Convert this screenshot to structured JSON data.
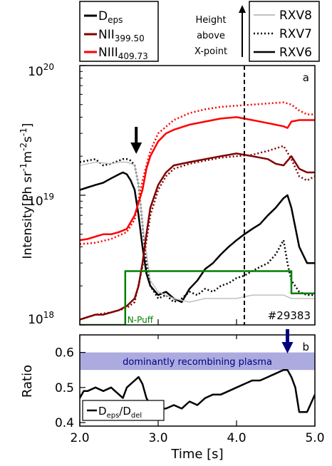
{
  "chart_data": [
    {
      "type": "line",
      "panel": "a",
      "xlim": [
        2.0,
        5.0
      ],
      "ylim": [
        1e+18,
        1e+20
      ],
      "yscale": "log",
      "ylabel": "Intensity[Ph sr-1m-2s-1]",
      "ylabel_parts": [
        "Intensity[Ph sr",
        "-1",
        "m",
        "-2",
        "s",
        "-1",
        "]"
      ],
      "ytick_labels": [
        {
          "value": 1e+20,
          "base": "10",
          "exp": "20"
        },
        {
          "value": 1e+19,
          "base": "10",
          "exp": "19"
        },
        {
          "value": 1e+18,
          "base": "10",
          "exp": "18"
        }
      ],
      "shot_label": "#29383",
      "vline_x": 4.1,
      "annotations": {
        "arrow_x": 2.72,
        "npuff_label": "N-Puff"
      },
      "legend_species": [
        {
          "name": "Deps",
          "base": "D",
          "sub": "eps",
          "color": "#000000"
        },
        {
          "name": "NII399.50",
          "base": "NII",
          "sub": "399.50",
          "color": "#800000"
        },
        {
          "name": "NIII409.73",
          "base": "NIII",
          "sub": "409.73",
          "color": "#ff0000"
        }
      ],
      "height_label": [
        "Height",
        "above",
        "X-point"
      ],
      "legend_views": [
        {
          "name": "RXV8",
          "color": "#c0c0c0",
          "dash": "solid"
        },
        {
          "name": "RXV7",
          "color": "#000000",
          "dash": "dotted"
        },
        {
          "name": "RXV6",
          "color": "#000000",
          "dash": "solid"
        }
      ],
      "series": [
        {
          "name": "Deps RXV6",
          "color": "#000000",
          "dash": "solid",
          "x": [
            2.0,
            2.1,
            2.2,
            2.3,
            2.4,
            2.5,
            2.55,
            2.6,
            2.65,
            2.7,
            2.75,
            2.8,
            2.85,
            2.9,
            3.0,
            3.1,
            3.2,
            3.3,
            3.4,
            3.5,
            3.6,
            3.7,
            3.8,
            3.9,
            4.0,
            4.1,
            4.2,
            4.3,
            4.4,
            4.5,
            4.6,
            4.65,
            4.7,
            4.8,
            4.9,
            5.0
          ],
          "y": [
            1.1e+19,
            1.15e+19,
            1.2e+19,
            1.25e+19,
            1.35e+19,
            1.45e+19,
            1.5e+19,
            1.45e+19,
            1.3e+19,
            1.1e+19,
            7e+18,
            4e+18,
            2.5e+18,
            2e+18,
            1.7e+18,
            1.8e+18,
            1.6e+18,
            1.5e+18,
            1.9e+18,
            2.2e+18,
            2.7e+18,
            3e+18,
            3.5e+18,
            4e+18,
            4.5e+18,
            5e+18,
            5.5e+18,
            6e+18,
            7e+18,
            8e+18,
            9.5e+18,
            1e+19,
            8e+18,
            4e+18,
            3e+18,
            3e+18
          ]
        },
        {
          "name": "Deps RXV7",
          "color": "#000000",
          "dash": "dotted",
          "x": [
            2.0,
            2.1,
            2.2,
            2.3,
            2.4,
            2.5,
            2.55,
            2.6,
            2.65,
            2.7,
            2.75,
            2.8,
            2.85,
            2.9,
            3.0,
            3.1,
            3.2,
            3.3,
            3.4,
            3.5,
            3.6,
            3.7,
            3.8,
            3.9,
            4.0,
            4.1,
            4.2,
            4.3,
            4.4,
            4.5,
            4.6,
            4.65,
            4.7,
            4.8,
            4.9,
            5.0
          ],
          "y": [
            1.8e+19,
            1.85e+19,
            1.9e+19,
            1.7e+19,
            1.75e+19,
            1.85e+19,
            1.9e+19,
            1.9e+19,
            1.85e+19,
            1.7e+19,
            1.2e+19,
            6e+18,
            3e+18,
            2e+18,
            1.6e+18,
            1.7e+18,
            1.5e+18,
            1.6e+18,
            1.8e+18,
            1.7e+18,
            1.9e+18,
            1.8e+18,
            2e+18,
            2.1e+18,
            2.3e+18,
            2.4e+18,
            2.6e+18,
            2.8e+18,
            3e+18,
            3.5e+18,
            4.5e+18,
            3e+18,
            2.2e+18,
            1.8e+18,
            1.7e+18,
            1.7e+18
          ]
        },
        {
          "name": "Deps RXV8",
          "color": "#c0c0c0",
          "dash": "solid",
          "x": [
            2.0,
            2.2,
            2.4,
            2.5,
            2.6,
            2.7,
            2.75,
            2.8,
            2.9,
            3.0,
            3.2,
            3.4,
            3.6,
            3.8,
            4.0,
            4.2,
            4.4,
            4.6,
            4.7,
            4.8,
            5.0
          ],
          "y": [
            1.7e+19,
            1.8e+19,
            1.75e+19,
            1.8e+19,
            1.8e+19,
            1.7e+19,
            1.2e+19,
            6e+18,
            2.2e+18,
            1.8e+18,
            1.6e+18,
            1.5e+18,
            1.6e+18,
            1.6e+18,
            1.6e+18,
            1.7e+18,
            1.7e+18,
            1.7e+18,
            1.6e+18,
            1.6e+18,
            1.6e+18
          ]
        },
        {
          "name": "NII399.50 RXV6",
          "color": "#800000",
          "dash": "solid",
          "x": [
            2.0,
            2.1,
            2.2,
            2.3,
            2.4,
            2.5,
            2.6,
            2.7,
            2.75,
            2.8,
            2.85,
            2.9,
            3.0,
            3.1,
            3.2,
            3.4,
            3.6,
            3.8,
            4.0,
            4.1,
            4.2,
            4.4,
            4.5,
            4.6,
            4.7,
            4.8,
            4.9,
            5.0
          ],
          "y": [
            1.1e+18,
            1.15e+18,
            1.2e+18,
            1.2e+18,
            1.25e+18,
            1.3e+18,
            1.4e+18,
            1.6e+18,
            2e+18,
            3e+18,
            5e+18,
            8e+18,
            1.2e+19,
            1.5e+19,
            1.7e+19,
            1.8e+19,
            1.9e+19,
            2e+19,
            2.1e+19,
            2.05e+19,
            2e+19,
            1.9e+19,
            1.75e+19,
            1.7e+19,
            2e+19,
            1.6e+19,
            1.5e+19,
            1.5e+19
          ]
        },
        {
          "name": "NII399.50 RXV7",
          "color": "#800000",
          "dash": "dotted",
          "x": [
            2.0,
            2.2,
            2.4,
            2.6,
            2.7,
            2.8,
            2.9,
            3.0,
            3.1,
            3.2,
            3.4,
            3.6,
            3.8,
            4.0,
            4.2,
            4.4,
            4.6,
            4.7,
            4.8,
            4.9,
            5.0
          ],
          "y": [
            1.1e+18,
            1.2e+18,
            1.25e+18,
            1.35e+18,
            1.5e+18,
            2.8e+18,
            7e+18,
            1.1e+19,
            1.4e+19,
            1.6e+19,
            1.75e+19,
            1.85e+19,
            1.95e+19,
            2e+19,
            2.05e+19,
            2.2e+19,
            2.4e+19,
            1.9e+19,
            1.4e+19,
            1.3e+19,
            1.4e+19
          ]
        },
        {
          "name": "NIII409.73 RXV6",
          "color": "#ff0000",
          "dash": "solid",
          "x": [
            2.0,
            2.1,
            2.2,
            2.3,
            2.4,
            2.5,
            2.6,
            2.7,
            2.8,
            2.85,
            2.9,
            3.0,
            3.1,
            3.2,
            3.4,
            3.6,
            3.8,
            4.0,
            4.2,
            4.4,
            4.6,
            4.65,
            4.7,
            4.8,
            5.0
          ],
          "y": [
            4.5e+18,
            4.6e+18,
            4.8e+18,
            5e+18,
            5e+18,
            5.2e+18,
            5.5e+18,
            7e+18,
            1.1e+19,
            1.6e+19,
            2e+19,
            2.6e+19,
            3e+19,
            3.2e+19,
            3.5e+19,
            3.7e+19,
            3.9e+19,
            4e+19,
            3.8e+19,
            3.6e+19,
            3.4e+19,
            3.3e+19,
            3.7e+19,
            3.8e+19,
            3.8e+19
          ]
        },
        {
          "name": "NIII409.73 RXV7",
          "color": "#ff0000",
          "dash": "dotted",
          "x": [
            2.0,
            2.2,
            2.4,
            2.6,
            2.7,
            2.8,
            2.9,
            3.0,
            3.2,
            3.4,
            3.6,
            3.8,
            4.0,
            4.2,
            4.4,
            4.6,
            4.7,
            4.8,
            4.9,
            5.0
          ],
          "y": [
            4.2e+18,
            4.3e+18,
            4.6e+18,
            5.2e+18,
            6.5e+18,
            1.3e+19,
            2.2e+19,
            3e+19,
            3.8e+19,
            4.3e+19,
            4.6e+19,
            4.8e+19,
            4.9e+19,
            5e+19,
            5.1e+19,
            5.2e+19,
            5e+19,
            4.5e+19,
            4.2e+19,
            4.2e+19
          ]
        },
        {
          "name": "N-Puff",
          "color": "#008000",
          "dash": "solid",
          "x": [
            2.0,
            2.55,
            2.55,
            2.58,
            2.58,
            4.7,
            4.7,
            5.0
          ],
          "y": [
            1e+18,
            1e+18,
            1e+18,
            1e+18,
            2.6e+18,
            2.6e+18,
            1.75e+18,
            1.75e+18
          ]
        }
      ]
    },
    {
      "type": "line",
      "panel": "b",
      "xlim": [
        2.0,
        5.0
      ],
      "ylim": [
        0.39,
        0.65
      ],
      "ylabel": "Ratio",
      "xlabel": "Time [s]",
      "yticks": [
        0.4,
        0.5,
        0.6
      ],
      "ytick_labels": [
        "0.4",
        "0.5",
        "0.6"
      ],
      "xticks": [
        2.0,
        3.0,
        4.0,
        5.0
      ],
      "xtick_labels": [
        "2.0",
        "3.0",
        "4.0",
        "5.0"
      ],
      "band": {
        "y0": 0.55,
        "y1": 0.6,
        "color": "#8f8fd6",
        "label": "dominantly recombining plasma",
        "label_color": "#000080"
      },
      "arrow": {
        "x": 4.65,
        "color": "#000080"
      },
      "legend": {
        "name": "Deps/Ddel",
        "base1": "D",
        "sub1": "eps",
        "mid": "/D",
        "sub2": "del"
      },
      "series": [
        {
          "name": "Deps/Ddel",
          "color": "#000000",
          "dash": "solid",
          "x": [
            2.0,
            2.05,
            2.1,
            2.2,
            2.3,
            2.4,
            2.45,
            2.5,
            2.55,
            2.6,
            2.7,
            2.75,
            2.8,
            2.85,
            2.9,
            3.0,
            3.1,
            3.2,
            3.3,
            3.4,
            3.5,
            3.6,
            3.7,
            3.8,
            3.9,
            4.0,
            4.1,
            4.2,
            4.3,
            4.4,
            4.5,
            4.6,
            4.65,
            4.7,
            4.75,
            4.8,
            4.9,
            5.0
          ],
          "y": [
            0.47,
            0.49,
            0.49,
            0.5,
            0.49,
            0.5,
            0.49,
            0.48,
            0.47,
            0.5,
            0.52,
            0.53,
            0.51,
            0.47,
            0.45,
            0.44,
            0.44,
            0.45,
            0.44,
            0.46,
            0.45,
            0.47,
            0.48,
            0.48,
            0.49,
            0.5,
            0.51,
            0.52,
            0.52,
            0.53,
            0.54,
            0.55,
            0.55,
            0.53,
            0.5,
            0.43,
            0.43,
            0.48
          ]
        }
      ]
    }
  ]
}
